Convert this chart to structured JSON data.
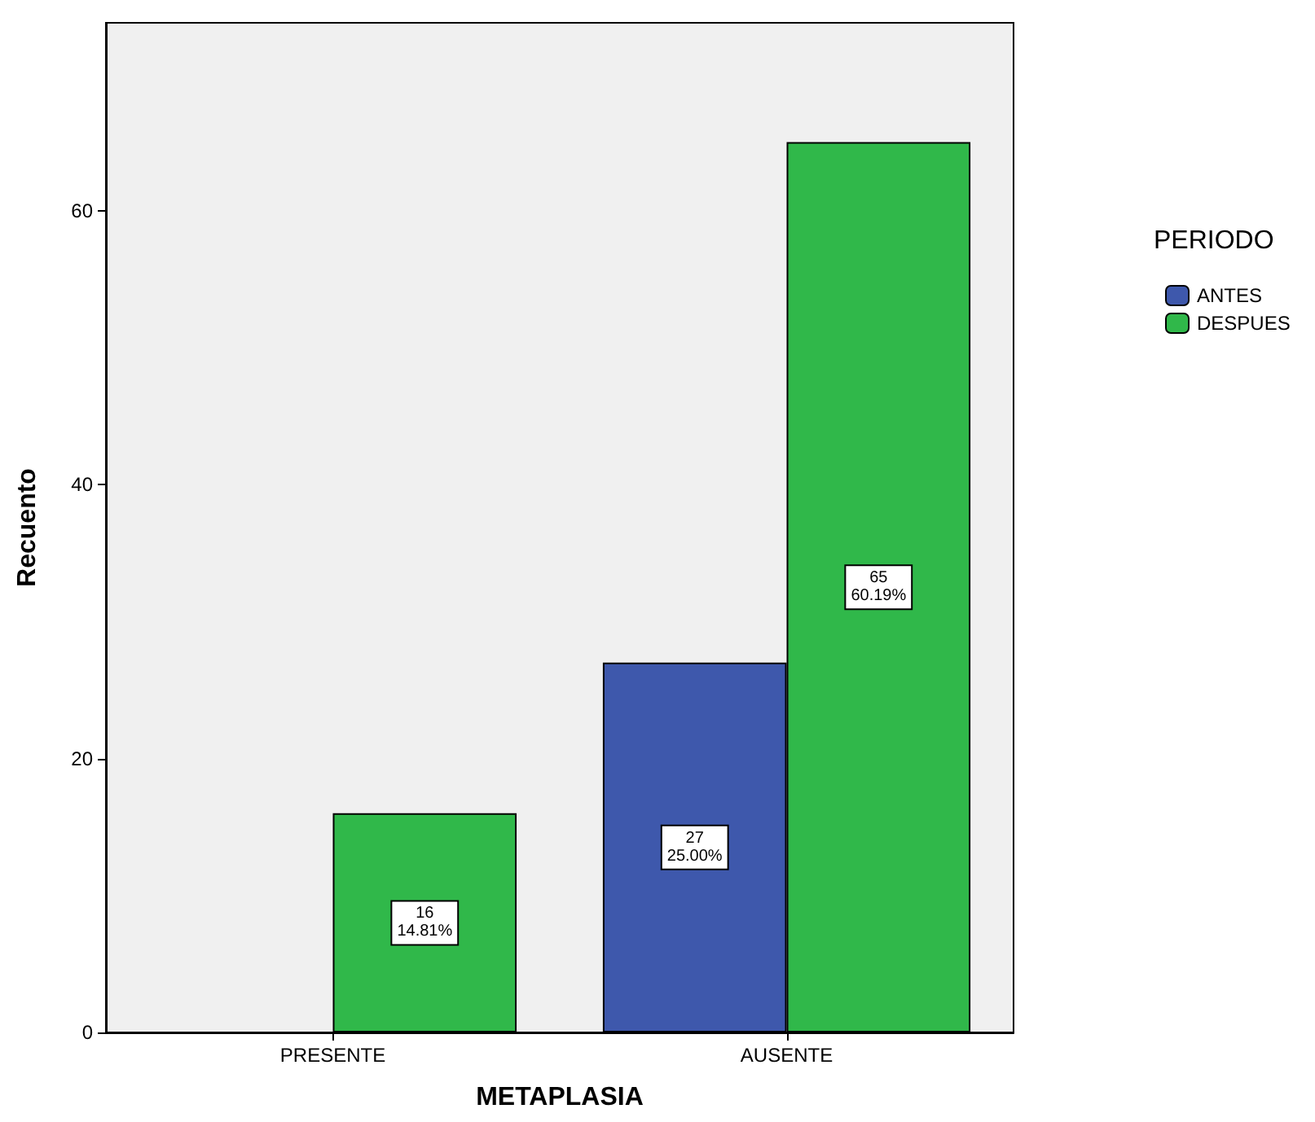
{
  "chart_data": {
    "type": "bar",
    "xlabel": "METAPLASIA",
    "ylabel": "Recuento",
    "legend_title": "PERIODO",
    "categories": [
      "PRESENTE",
      "AUSENTE"
    ],
    "series": [
      {
        "name": "ANTES",
        "color": "#3e58ac",
        "values": [
          null,
          27
        ],
        "value_labels": [
          null,
          "27\n25.00%"
        ]
      },
      {
        "name": "DESPUES",
        "color": "#30b84a",
        "values": [
          16,
          65
        ],
        "value_labels": [
          "16\n14.81%",
          "65\n60.19%"
        ]
      }
    ],
    "ylim": [
      0,
      73.7
    ],
    "yticks": [
      0,
      20,
      40,
      60
    ],
    "grid": false,
    "legend": "right"
  }
}
